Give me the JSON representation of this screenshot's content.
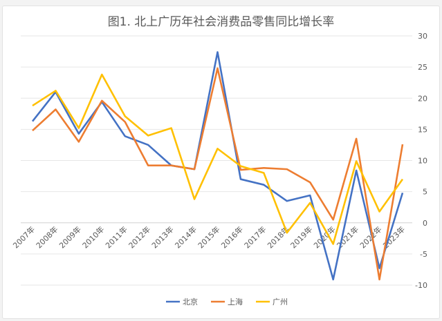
{
  "chart_data": {
    "type": "line",
    "title": "图1. 北上广历年社会消费品零售同比增长率",
    "categories": [
      "2007年",
      "2008年",
      "2009年",
      "2010年",
      "2011年",
      "2012年",
      "2013年",
      "2014年",
      "2015年",
      "2016年",
      "2017年",
      "2018年",
      "2019年",
      "2020年",
      "2021年",
      "2022年",
      "2023年"
    ],
    "series": [
      {
        "name": "北京",
        "color": "#4472C4",
        "values": [
          16.3,
          21.0,
          14.3,
          19.4,
          13.9,
          12.5,
          9.2,
          8.6,
          27.4,
          7.0,
          6.1,
          3.5,
          4.4,
          -9.1,
          8.4,
          -7.3,
          4.8
        ]
      },
      {
        "name": "上海",
        "color": "#ED7D31",
        "values": [
          14.8,
          18.2,
          13.0,
          19.6,
          16.2,
          9.2,
          9.2,
          8.6,
          24.8,
          8.5,
          8.8,
          8.6,
          6.5,
          0.5,
          13.5,
          -9.1,
          12.6
        ]
      },
      {
        "name": "广州",
        "color": "#FFC000",
        "values": [
          18.8,
          21.2,
          15.2,
          23.8,
          17.1,
          14.0,
          15.2,
          3.8,
          11.9,
          9.1,
          8.0,
          -1.6,
          3.2,
          -3.4,
          9.9,
          1.8,
          7.0
        ]
      }
    ],
    "ylim": [
      -10,
      30
    ],
    "yticks": [
      -10,
      -5,
      0,
      5,
      10,
      15,
      20,
      25,
      30
    ],
    "y_axis_position": "right",
    "grid": true,
    "legend": "bottom"
  }
}
